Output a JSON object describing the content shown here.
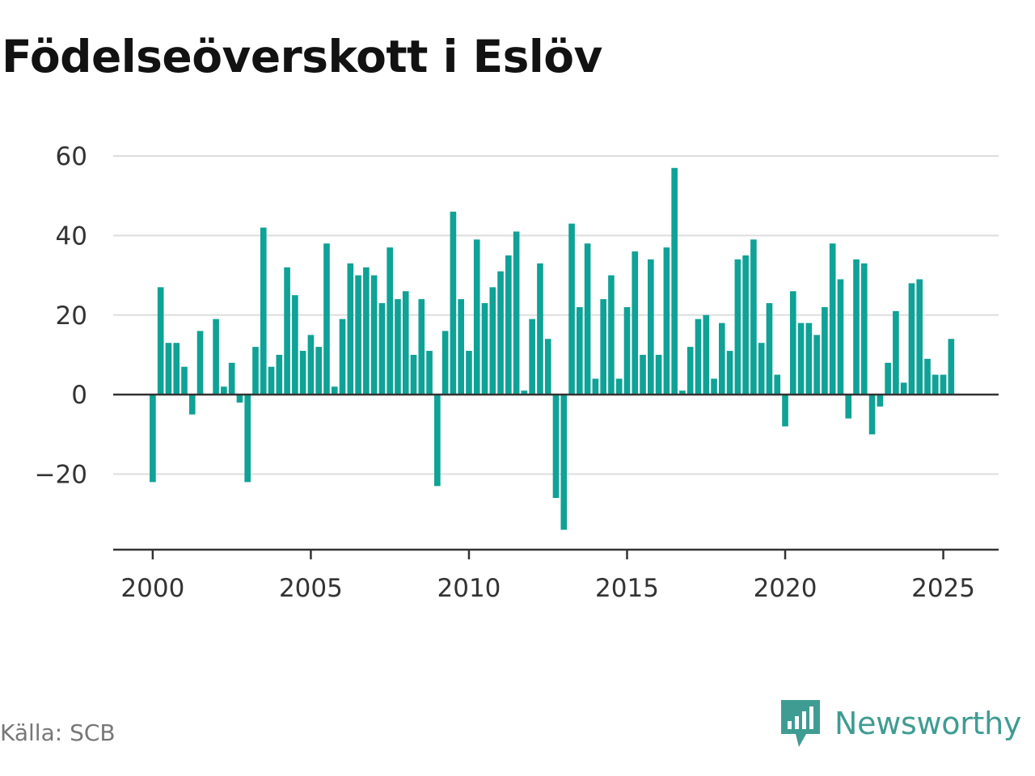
{
  "header": {
    "title": "Födelseöverskott i Eslöv"
  },
  "footer": {
    "source": "Källa: SCB",
    "brand": "Newsworthy"
  },
  "colors": {
    "bar": "#0fa296",
    "grid": "#dddddd",
    "axis": "#333333",
    "text": "#333333",
    "brand": "#3f9c92"
  },
  "chart_data": {
    "type": "bar",
    "title": "Födelseöverskott i Eslöv",
    "xlabel": "",
    "ylabel": "",
    "x_start": 2000,
    "periods_per_year": 4,
    "xlim": [
      1998.75,
      2026.75
    ],
    "ylim": [
      -39,
      60
    ],
    "y_ticks": [
      60,
      40,
      20,
      0,
      -20
    ],
    "y_tick_labels": [
      "60",
      "40",
      "20",
      "0",
      "−20"
    ],
    "x_ticks": [
      2000,
      2005,
      2010,
      2015,
      2020,
      2025
    ],
    "x_tick_labels": [
      "2000",
      "2005",
      "2010",
      "2015",
      "2020",
      "2025"
    ],
    "grid": true,
    "legend": "none",
    "values": [
      -22,
      27,
      13,
      13,
      7,
      -5,
      16,
      0,
      19,
      2,
      8,
      -2,
      -22,
      12,
      42,
      7,
      10,
      32,
      25,
      11,
      15,
      12,
      38,
      2,
      19,
      33,
      30,
      32,
      30,
      23,
      37,
      24,
      26,
      10,
      24,
      11,
      -23,
      16,
      46,
      24,
      11,
      39,
      23,
      27,
      31,
      35,
      41,
      1,
      19,
      33,
      14,
      -26,
      -34,
      43,
      22,
      38,
      4,
      24,
      30,
      4,
      22,
      36,
      10,
      34,
      10,
      37,
      57,
      1,
      12,
      19,
      20,
      4,
      18,
      11,
      34,
      35,
      39,
      13,
      23,
      5,
      -8,
      26,
      18,
      18,
      15,
      22,
      38,
      29,
      -6,
      34,
      33,
      -10,
      -3,
      8,
      21,
      3,
      28,
      29,
      9,
      5,
      5,
      14
    ]
  }
}
